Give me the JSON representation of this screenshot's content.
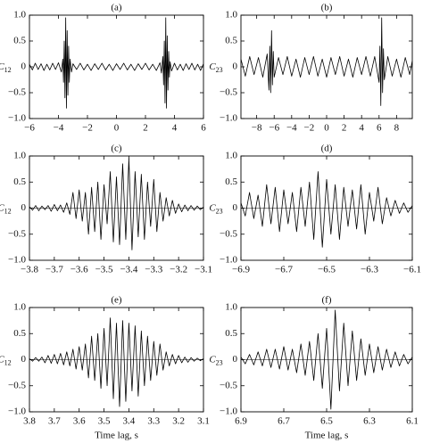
{
  "chart_data": [
    {
      "type": "line",
      "title": "(a)",
      "ylabel_symbol": "C",
      "ylabel_subscript": "12",
      "color": "#000000",
      "zero_line": false,
      "xlim": [
        -6,
        6
      ],
      "ylim": [
        -1,
        1
      ],
      "xticks": [
        {
          "value": -6,
          "label": "−6"
        },
        {
          "value": -4,
          "label": "−4"
        },
        {
          "value": -2,
          "label": "−2"
        },
        0,
        2,
        4,
        6
      ],
      "yticks": [
        {
          "value": -1,
          "label": "−1.0"
        },
        {
          "value": -0.5,
          "label": "−0.5"
        },
        0,
        0.5,
        {
          "value": 1,
          "label": "1.0"
        }
      ],
      "x": [
        -6,
        -5.8,
        -5.6,
        -5.4,
        -5.2,
        -5,
        -4.8,
        -4.6,
        -4.4,
        -4.2,
        -4,
        -3.8,
        -3.7,
        -3.65,
        -3.6,
        -3.55,
        -3.5,
        -3.45,
        -3.4,
        -3.35,
        -3.3,
        -3.25,
        -3.2,
        -3.1,
        -3,
        -2.75,
        -2.5,
        -2.25,
        -2,
        -1.75,
        -1.5,
        -1.25,
        -1,
        -0.75,
        -0.5,
        -0.25,
        0,
        0.25,
        0.5,
        0.75,
        1,
        1.25,
        1.5,
        1.75,
        2,
        2.25,
        2.5,
        2.75,
        3,
        3.1,
        3.2,
        3.25,
        3.3,
        3.35,
        3.4,
        3.45,
        3.5,
        3.55,
        3.6,
        3.65,
        3.7,
        3.8,
        4,
        4.2,
        4.4,
        4.6,
        4.8,
        5,
        5.2,
        5.4,
        5.6,
        5.8,
        6
      ],
      "values": [
        0.05,
        -0.06,
        0.07,
        -0.05,
        0.06,
        -0.07,
        0.05,
        -0.06,
        0.07,
        -0.05,
        0.08,
        -0.1,
        0.15,
        -0.3,
        0.5,
        -0.6,
        0.95,
        -0.8,
        0.7,
        -0.55,
        0.4,
        -0.3,
        0.15,
        -0.1,
        0.06,
        -0.05,
        0.07,
        -0.06,
        0.05,
        -0.07,
        0.06,
        -0.05,
        0.07,
        -0.06,
        0.05,
        -0.07,
        0.06,
        -0.05,
        0.07,
        -0.06,
        0.05,
        -0.07,
        0.06,
        -0.05,
        0.07,
        -0.06,
        0.05,
        -0.07,
        0.08,
        -0.12,
        0.2,
        -0.35,
        0.5,
        -0.7,
        0.95,
        -0.8,
        0.6,
        -0.45,
        0.3,
        -0.2,
        0.1,
        -0.08,
        0.07,
        -0.06,
        0.05,
        -0.07,
        0.06,
        -0.05,
        0.07,
        -0.06,
        0.05,
        -0.07,
        0.06
      ]
    },
    {
      "type": "line",
      "title": "(b)",
      "ylabel_symbol": "C",
      "ylabel_subscript": "23",
      "color": "#000000",
      "zero_line": false,
      "xlim": [
        -9.8,
        9.8
      ],
      "ylim": [
        -1,
        1
      ],
      "xticks": [
        {
          "value": -8,
          "label": "−8"
        },
        {
          "value": -6,
          "label": "−6"
        },
        {
          "value": -4,
          "label": "−4"
        },
        {
          "value": -2,
          "label": "−2"
        },
        0,
        2,
        4,
        6,
        8
      ],
      "yticks": [
        {
          "value": -1,
          "label": "−1.0"
        },
        {
          "value": -0.5,
          "label": "−0.5"
        },
        0,
        0.5,
        {
          "value": 1,
          "label": "1.0"
        }
      ],
      "x": [
        -9.8,
        -9.3,
        -8.8,
        -8.3,
        -7.8,
        -7.3,
        -6.8,
        -6.6,
        -6.5,
        -6.4,
        -6.3,
        -6.2,
        -6.1,
        -6,
        -5.5,
        -5,
        -4.5,
        -4,
        -3.5,
        -3,
        -2.5,
        -2,
        -1.5,
        -1,
        -0.5,
        0,
        0.5,
        1,
        1.5,
        2,
        2.5,
        3,
        3.5,
        4,
        4.5,
        5,
        5.5,
        6,
        6.1,
        6.2,
        6.3,
        6.4,
        6.5,
        6.6,
        7,
        7.5,
        8,
        8.5,
        9,
        9.5,
        9.8
      ],
      "values": [
        0.15,
        -0.18,
        0.2,
        -0.15,
        0.18,
        -0.2,
        0.25,
        -0.45,
        0.4,
        -0.5,
        0.7,
        -0.35,
        0.3,
        -0.2,
        0.18,
        -0.15,
        0.2,
        -0.18,
        0.15,
        -0.2,
        0.18,
        -0.15,
        0.2,
        -0.18,
        0.15,
        -0.2,
        0.18,
        -0.15,
        0.2,
        -0.18,
        0.15,
        -0.2,
        0.18,
        -0.15,
        0.2,
        -0.18,
        0.2,
        -0.3,
        0.4,
        -0.75,
        0.95,
        -0.5,
        0.35,
        -0.25,
        0.2,
        -0.18,
        0.15,
        -0.2,
        0.18,
        -0.15,
        0.12
      ]
    },
    {
      "type": "line",
      "title": "(c)",
      "ylabel_symbol": "C",
      "ylabel_subscript": "12",
      "color": "#000000",
      "zero_line": true,
      "xlim": [
        -3.8,
        -3.1
      ],
      "ylim": [
        -1,
        1
      ],
      "xticks": [
        {
          "value": -3.8,
          "label": "−3.8"
        },
        {
          "value": -3.7,
          "label": "−3.7"
        },
        {
          "value": -3.6,
          "label": "−3.6"
        },
        {
          "value": -3.5,
          "label": "−3.5"
        },
        {
          "value": -3.4,
          "label": "−3.4"
        },
        {
          "value": -3.3,
          "label": "−3.3"
        },
        {
          "value": -3.2,
          "label": "−3.2"
        },
        {
          "value": -3.1,
          "label": "−3.1"
        }
      ],
      "yticks": [
        {
          "value": -1,
          "label": "−1.0"
        },
        {
          "value": -0.5,
          "label": "−0.5"
        },
        0,
        0.5,
        {
          "value": 1,
          "label": "1.0"
        }
      ],
      "x": [
        -3.8,
        -3.7875,
        -3.775,
        -3.7625,
        -3.75,
        -3.7375,
        -3.725,
        -3.7125,
        -3.7,
        -3.6875,
        -3.675,
        -3.6625,
        -3.65,
        -3.6375,
        -3.625,
        -3.6125,
        -3.6,
        -3.5875,
        -3.575,
        -3.5625,
        -3.55,
        -3.5375,
        -3.525,
        -3.5125,
        -3.5,
        -3.4875,
        -3.475,
        -3.4625,
        -3.45,
        -3.4375,
        -3.425,
        -3.4125,
        -3.4,
        -3.3875,
        -3.375,
        -3.3625,
        -3.35,
        -3.3375,
        -3.325,
        -3.3125,
        -3.3,
        -3.2875,
        -3.275,
        -3.2625,
        -3.25,
        -3.2375,
        -3.225,
        -3.2125,
        -3.2,
        -3.1875,
        -3.175,
        -3.1625,
        -3.15,
        -3.1375,
        -3.125,
        -3.1125,
        -3.1
      ],
      "values": [
        0.03,
        -0.04,
        0.05,
        -0.05,
        0.04,
        -0.03,
        0.05,
        -0.06,
        0.07,
        -0.05,
        0.06,
        -0.08,
        0.1,
        -0.12,
        0.3,
        -0.2,
        0.35,
        -0.25,
        0.3,
        -0.5,
        0.4,
        -0.45,
        0.5,
        -0.6,
        0.45,
        -0.3,
        0.7,
        -0.65,
        0.6,
        -0.7,
        0.85,
        -0.6,
        0.95,
        -0.8,
        0.7,
        -0.55,
        0.65,
        -0.6,
        0.5,
        -0.35,
        0.55,
        -0.45,
        0.3,
        -0.25,
        0.2,
        -0.15,
        0.15,
        -0.1,
        0.08,
        -0.07,
        0.06,
        -0.05,
        0.05,
        -0.04,
        0.04,
        -0.03,
        0.02
      ]
    },
    {
      "type": "line",
      "title": "(d)",
      "ylabel_symbol": "C",
      "ylabel_subscript": "23",
      "color": "#000000",
      "zero_line": true,
      "xlim": [
        -6.9,
        -6.1
      ],
      "ylim": [
        -1,
        1
      ],
      "xticks": [
        {
          "value": -6.9,
          "label": "−6.9"
        },
        {
          "value": -6.7,
          "label": "−6.7"
        },
        {
          "value": -6.5,
          "label": "−6.5"
        },
        {
          "value": -6.3,
          "label": "−6.3"
        },
        {
          "value": -6.1,
          "label": "−6.1"
        }
      ],
      "yticks": [
        {
          "value": -1,
          "label": "−1.0"
        },
        {
          "value": -0.5,
          "label": "−0.5"
        },
        0,
        0.5,
        {
          "value": 1,
          "label": "1.0"
        }
      ],
      "x": [
        -6.9,
        -6.88,
        -6.86,
        -6.84,
        -6.82,
        -6.8,
        -6.78,
        -6.76,
        -6.74,
        -6.72,
        -6.7,
        -6.68,
        -6.66,
        -6.64,
        -6.62,
        -6.6,
        -6.58,
        -6.56,
        -6.54,
        -6.52,
        -6.5,
        -6.48,
        -6.46,
        -6.44,
        -6.42,
        -6.4,
        -6.38,
        -6.36,
        -6.34,
        -6.32,
        -6.3,
        -6.28,
        -6.26,
        -6.24,
        -6.22,
        -6.2,
        -6.18,
        -6.16,
        -6.14,
        -6.12,
        -6.1
      ],
      "values": [
        0.1,
        -0.15,
        0.3,
        -0.2,
        0.25,
        -0.35,
        0.45,
        -0.3,
        0.4,
        -0.45,
        0.35,
        -0.3,
        0.3,
        -0.45,
        0.4,
        -0.35,
        0.5,
        -0.6,
        0.7,
        -0.75,
        0.55,
        -0.5,
        0.45,
        -0.6,
        0.4,
        -0.35,
        0.35,
        -0.4,
        0.45,
        -0.5,
        0.3,
        -0.25,
        0.4,
        -0.3,
        0.2,
        -0.15,
        0.15,
        -0.1,
        0.1,
        -0.08,
        0.05
      ]
    },
    {
      "type": "line",
      "title": "(e)",
      "ylabel_symbol": "C",
      "ylabel_subscript": "12",
      "xlabel": "Time lag, s",
      "color": "#000000",
      "zero_line": true,
      "xlim": [
        3.8,
        3.1
      ],
      "ylim": [
        -1,
        1
      ],
      "xticks": [
        3.8,
        3.7,
        3.6,
        3.5,
        3.4,
        3.3,
        3.2,
        3.1
      ],
      "yticks": [
        {
          "value": -1,
          "label": "−1.0"
        },
        {
          "value": -0.5,
          "label": "−0.5"
        },
        0,
        0.5,
        {
          "value": 1,
          "label": "1.0"
        }
      ],
      "x": [
        3.8,
        3.7875,
        3.775,
        3.7625,
        3.75,
        3.7375,
        3.725,
        3.7125,
        3.7,
        3.6875,
        3.675,
        3.6625,
        3.65,
        3.6375,
        3.625,
        3.6125,
        3.6,
        3.5875,
        3.575,
        3.5625,
        3.55,
        3.5375,
        3.525,
        3.5125,
        3.5,
        3.4875,
        3.475,
        3.4625,
        3.45,
        3.4375,
        3.425,
        3.4125,
        3.4,
        3.3875,
        3.375,
        3.3625,
        3.35,
        3.3375,
        3.325,
        3.3125,
        3.3,
        3.2875,
        3.275,
        3.2625,
        3.25,
        3.2375,
        3.225,
        3.2125,
        3.2,
        3.1875,
        3.175,
        3.1625,
        3.15,
        3.1375,
        3.125,
        3.1125,
        3.1
      ],
      "values": [
        0.02,
        -0.03,
        0.04,
        -0.03,
        0.05,
        -0.06,
        0.08,
        -0.07,
        0.1,
        -0.08,
        0.12,
        -0.1,
        0.15,
        -0.12,
        0.2,
        -0.18,
        0.25,
        -0.2,
        0.3,
        -0.35,
        0.45,
        -0.4,
        0.5,
        -0.55,
        0.6,
        -0.5,
        0.8,
        -0.75,
        0.7,
        -0.9,
        0.75,
        -0.8,
        0.7,
        -0.6,
        0.65,
        -0.7,
        0.55,
        -0.5,
        0.45,
        -0.4,
        0.35,
        -0.3,
        0.3,
        -0.2,
        0.15,
        -0.12,
        0.1,
        -0.08,
        0.08,
        -0.06,
        0.05,
        -0.05,
        0.04,
        -0.03,
        0.03,
        -0.02,
        0.02
      ]
    },
    {
      "type": "line",
      "title": "(f)",
      "ylabel_symbol": "C",
      "ylabel_subscript": "23",
      "xlabel": "Time lag, s",
      "color": "#000000",
      "zero_line": true,
      "xlim": [
        6.9,
        6.1
      ],
      "ylim": [
        -1,
        1
      ],
      "xticks": [
        6.9,
        6.7,
        6.5,
        6.3,
        6.1
      ],
      "yticks": [
        {
          "value": -1,
          "label": "−1.0"
        },
        {
          "value": -0.5,
          "label": "−0.5"
        },
        0,
        0.5,
        {
          "value": 1,
          "label": "1.0"
        }
      ],
      "x": [
        6.9,
        6.88,
        6.86,
        6.84,
        6.82,
        6.8,
        6.78,
        6.76,
        6.74,
        6.72,
        6.7,
        6.68,
        6.66,
        6.64,
        6.62,
        6.6,
        6.58,
        6.56,
        6.54,
        6.52,
        6.5,
        6.48,
        6.46,
        6.44,
        6.42,
        6.4,
        6.38,
        6.36,
        6.34,
        6.32,
        6.3,
        6.28,
        6.26,
        6.24,
        6.22,
        6.2,
        6.18,
        6.16,
        6.14,
        6.12,
        6.1
      ],
      "values": [
        0.05,
        -0.08,
        0.1,
        -0.1,
        0.15,
        -0.12,
        0.2,
        -0.15,
        0.2,
        -0.18,
        0.25,
        -0.2,
        0.2,
        -0.25,
        0.3,
        -0.3,
        0.35,
        -0.4,
        0.5,
        -0.55,
        0.6,
        -0.95,
        0.95,
        -0.6,
        0.7,
        -0.5,
        0.55,
        -0.4,
        0.4,
        -0.3,
        0.3,
        -0.25,
        0.25,
        -0.2,
        0.2,
        -0.15,
        0.15,
        -0.12,
        0.1,
        -0.08,
        0.05
      ]
    }
  ]
}
